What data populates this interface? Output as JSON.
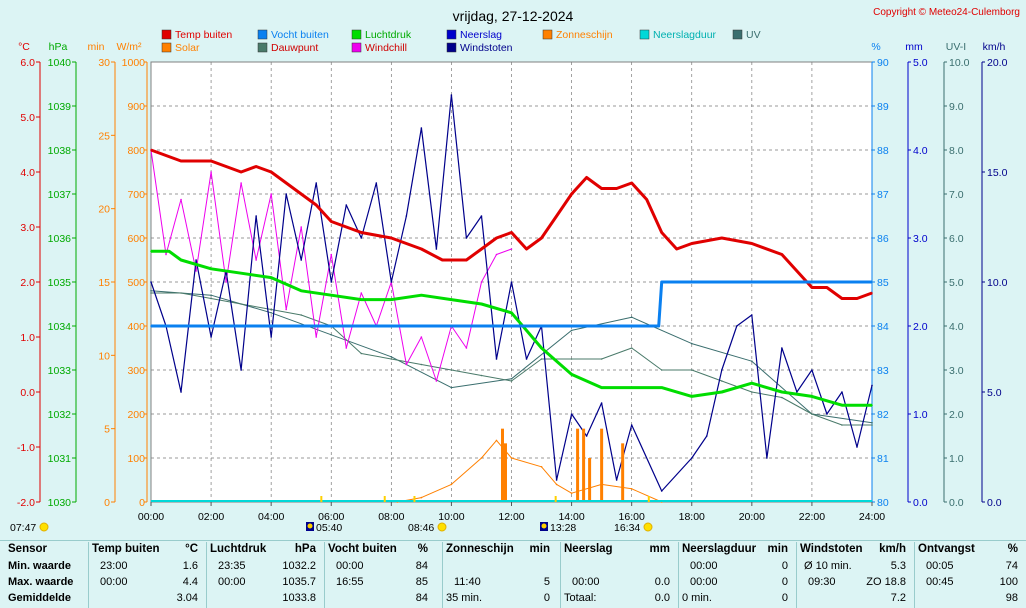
{
  "title": "vrijdag, 27-12-2024",
  "copyright": "Copyright © Meteo24-Culemborg",
  "colors": {
    "temp": "#e00000",
    "humidity": "#0a80f0",
    "pressure": "#00dd00",
    "rain": "#0000cc",
    "sun": "#ff8000",
    "rain_duration": "#00d8d8",
    "uv": "#3a6e6e",
    "solar": "#ff8000",
    "dewpoint": "#4a7a6a",
    "windchill": "#ee00ee",
    "gusts": "#00008b"
  },
  "legend": [
    {
      "label": "Temp buiten",
      "color": "#e00000",
      "text_color": "#e00000"
    },
    {
      "label": "Vocht buiten",
      "color": "#0a80f0",
      "text_color": "#0a80f0"
    },
    {
      "label": "Luchtdruk",
      "color": "#00dd00",
      "text_color": "#00aa00"
    },
    {
      "label": "Neerslag",
      "color": "#0000cc",
      "text_color": "#0000cc"
    },
    {
      "label": "Zonneschijn",
      "color": "#ff8000",
      "text_color": "#ff8000"
    },
    {
      "label": "Neerslagduur",
      "color": "#00d8d8",
      "text_color": "#00b0b0"
    },
    {
      "label": "UV",
      "color": "#3a6e6e",
      "text_color": "#3a6e6e"
    },
    {
      "label": "Solar",
      "color": "#ff8000",
      "text_color": "#ff8000"
    },
    {
      "label": "Dauwpunt",
      "color": "#4a7a6a",
      "text_color": "#d00000"
    },
    {
      "label": "Windchill",
      "color": "#ee00ee",
      "text_color": "#d00000"
    },
    {
      "label": "Windstoten",
      "color": "#00008b",
      "text_color": "#00008b"
    }
  ],
  "axis_units": {
    "temp": "°C",
    "pressure": "hPa",
    "minutes": "min",
    "solar": "W/m²",
    "humidity": "%",
    "rain": "mm",
    "uv": "UV-I",
    "wind": "km/h"
  },
  "chart_data": {
    "type": "line",
    "x_ticks": [
      "00:00",
      "02:00",
      "04:00",
      "06:00",
      "08:00",
      "10:00",
      "12:00",
      "14:00",
      "16:00",
      "18:00",
      "20:00",
      "22:00",
      "24:00"
    ],
    "grid": true,
    "axes": {
      "temp": {
        "range": [
          -2.0,
          6.0
        ],
        "ticks": [
          "6.0",
          "5.0",
          "4.0",
          "3.0",
          "2.0",
          "1.0",
          "0.0",
          "-1.0",
          "-2.0"
        ]
      },
      "pressure": {
        "range": [
          1030,
          1040
        ],
        "ticks": [
          "1040",
          "1039",
          "1038",
          "1037",
          "1036",
          "1035",
          "1034",
          "1033",
          "1032",
          "1031",
          "1030"
        ]
      },
      "minutes": {
        "range": [
          0,
          30
        ],
        "ticks": [
          "30",
          "25",
          "20",
          "15",
          "10",
          "5",
          "0"
        ]
      },
      "solar": {
        "range": [
          0,
          1000
        ],
        "ticks": [
          "1000",
          "900",
          "800",
          "700",
          "600",
          "500",
          "400",
          "300",
          "200",
          "100",
          "0"
        ]
      },
      "humidity": {
        "range": [
          80,
          90
        ],
        "ticks": [
          "90",
          "89",
          "88",
          "87",
          "86",
          "85",
          "84",
          "83",
          "82",
          "81",
          "80"
        ]
      },
      "rain": {
        "range": [
          0,
          5
        ],
        "ticks": [
          "5.0",
          "4.0",
          "3.0",
          "2.0",
          "1.0",
          "0.0"
        ]
      },
      "uv": {
        "range": [
          0,
          10
        ],
        "ticks": [
          "10.0",
          "9.0",
          "8.0",
          "7.0",
          "6.0",
          "5.0",
          "4.0",
          "3.0",
          "2.0",
          "1.0",
          "0.0"
        ]
      },
      "wind": {
        "range": [
          0,
          20
        ],
        "ticks": [
          "20.0",
          "15.0",
          "10.0",
          "5.0",
          "0.0"
        ]
      }
    },
    "series": [
      {
        "name": "Temp buiten",
        "axis": "temp",
        "hours": [
          0,
          0.5,
          1,
          2,
          3,
          3.5,
          4,
          4.5,
          5,
          5.5,
          6,
          7,
          8,
          9,
          9.7,
          10.5,
          11,
          11.5,
          12,
          12.5,
          13,
          13.5,
          14,
          14.5,
          15,
          15.5,
          16,
          16.5,
          17,
          17.5,
          18,
          19,
          20,
          21,
          21.5,
          22,
          22.5,
          23,
          23.5,
          24
        ],
        "values": [
          4.4,
          4.3,
          4.2,
          4.2,
          4.0,
          4.1,
          4.0,
          3.8,
          3.6,
          3.4,
          3.1,
          2.9,
          2.8,
          2.6,
          2.4,
          2.4,
          2.6,
          2.8,
          2.9,
          2.6,
          2.8,
          3.2,
          3.6,
          3.9,
          3.7,
          3.7,
          3.8,
          3.5,
          2.9,
          2.6,
          2.7,
          2.8,
          2.7,
          2.5,
          2.2,
          1.9,
          1.9,
          1.7,
          1.7,
          1.8
        ]
      },
      {
        "name": "Vocht buiten",
        "axis": "humidity",
        "hours": [
          0,
          6,
          12,
          16.9,
          17,
          24
        ],
        "values": [
          84,
          84,
          84,
          84,
          85,
          85
        ]
      },
      {
        "name": "Luchtdruk",
        "axis": "pressure",
        "hours": [
          0,
          0.6,
          1,
          2,
          3,
          4,
          5,
          6,
          7,
          8,
          9,
          10,
          11,
          12,
          13,
          14,
          15,
          16,
          17,
          18,
          19,
          20,
          21,
          22,
          23,
          24
        ],
        "values": [
          1035.7,
          1035.7,
          1035.5,
          1035.3,
          1035.2,
          1035.1,
          1034.8,
          1034.7,
          1034.6,
          1034.6,
          1034.7,
          1034.6,
          1034.5,
          1034.3,
          1033.5,
          1032.9,
          1032.6,
          1032.6,
          1032.6,
          1032.4,
          1032.5,
          1032.7,
          1032.5,
          1032.4,
          1032.2,
          1032.2
        ]
      },
      {
        "name": "Dauwpunt",
        "axis": "temp",
        "hours": [
          0,
          1,
          2,
          3,
          4,
          5,
          6,
          7,
          8,
          9,
          10,
          11,
          12,
          13,
          14,
          15,
          16,
          17,
          18,
          19,
          20,
          21,
          22,
          23,
          24
        ],
        "values": [
          1.8,
          1.8,
          1.7,
          1.6,
          1.5,
          1.4,
          1.2,
          0.7,
          0.6,
          0.5,
          0.4,
          0.3,
          0.2,
          0.6,
          0.6,
          0.6,
          0.8,
          0.4,
          0.4,
          0.2,
          0.0,
          -0.1,
          -0.4,
          -0.6,
          -0.6
        ]
      },
      {
        "name": "Windchill",
        "axis": "temp",
        "hours": [
          0,
          0.5,
          1,
          1.5,
          2,
          2.5,
          3,
          3.5,
          4,
          4.5,
          5,
          5.5,
          6,
          6.5,
          7,
          7.5,
          8,
          8.5,
          9,
          9.5,
          10,
          10.5,
          11,
          11.5,
          12
        ],
        "values": [
          4.4,
          2.5,
          3.5,
          2.2,
          4.0,
          2.0,
          3.8,
          2.4,
          3.6,
          1.5,
          3.0,
          1.0,
          2.5,
          0.8,
          1.8,
          1.2,
          2.0,
          0.5,
          1.0,
          0.2,
          1.2,
          0.8,
          2.0,
          2.5,
          2.6
        ]
      },
      {
        "name": "Solar",
        "axis": "solar",
        "hours": [
          8.2,
          9,
          10,
          11,
          11.5,
          12,
          13,
          13.5,
          14,
          15,
          16,
          17
        ],
        "values": [
          0,
          10,
          40,
          100,
          140,
          100,
          80,
          40,
          20,
          40,
          30,
          0
        ]
      },
      {
        "name": "Zonneschijn",
        "axis": "minutes",
        "hours": [
          11.7,
          11.8,
          14.2,
          14.4,
          14.6,
          15.0,
          15.7
        ],
        "values": [
          5,
          4,
          5,
          5,
          3,
          5,
          4
        ]
      },
      {
        "name": "Windstoten",
        "axis": "wind",
        "hours": [
          0,
          0.5,
          1,
          1.5,
          2,
          2.5,
          3,
          3.5,
          4,
          4.5,
          5,
          5.5,
          6,
          6.5,
          7,
          7.5,
          8,
          8.5,
          9,
          9.5,
          10,
          10.5,
          11,
          11.5,
          12,
          12.5,
          13,
          13.5,
          14,
          14.5,
          15,
          15.5,
          16,
          17,
          18,
          18.5,
          19,
          19.5,
          20,
          20.5,
          21,
          21.5,
          22,
          22.5,
          23,
          23.5,
          24
        ],
        "values": [
          10.0,
          8.0,
          5.0,
          11.0,
          7.5,
          10.5,
          6.0,
          13.0,
          7.5,
          14.0,
          11.0,
          14.5,
          10.0,
          13.5,
          12.0,
          14.5,
          10.0,
          13.0,
          17.0,
          11.5,
          18.5,
          12.0,
          13.0,
          6.5,
          10.0,
          6.5,
          8.0,
          1.0,
          4.0,
          3.0,
          4.5,
          1.0,
          3.5,
          0.5,
          2.0,
          3.0,
          6.0,
          8.0,
          8.5,
          2.0,
          7.0,
          5.0,
          6.0,
          4.0,
          5.0,
          2.5,
          5.3
        ]
      },
      {
        "name": "UV",
        "axis": "uv",
        "hours": [
          0,
          2,
          4,
          6,
          8,
          10,
          12,
          14,
          16,
          18,
          20,
          22,
          24
        ],
        "values": [
          4.8,
          4.7,
          4.3,
          3.8,
          3.3,
          2.6,
          2.8,
          3.9,
          4.2,
          3.6,
          3.2,
          2.0,
          1.8
        ]
      }
    ],
    "sun_events": [
      {
        "time": "07:47",
        "hour": 7.78
      },
      {
        "time": "05:40",
        "hour": 5.67
      },
      {
        "time": "08:46",
        "hour": 8.77
      },
      {
        "time": "13:28",
        "hour": 13.47
      },
      {
        "time": "16:34",
        "hour": 16.57
      }
    ]
  },
  "table": {
    "row_labels": {
      "header": "Sensor",
      "min": "Min. waarde",
      "max": "Max. waarde",
      "avg": "Gemiddelde"
    },
    "columns": [
      {
        "title": "Temp buiten",
        "unit": "°C",
        "min_time": "23:00",
        "min_val": "1.6",
        "max_time": "00:00",
        "max_val": "4.4",
        "avg_label": "",
        "avg_val": "3.04"
      },
      {
        "title": "Luchtdruk",
        "unit": "hPa",
        "min_time": "23:35",
        "min_val": "1032.2",
        "max_time": "00:00",
        "max_val": "1035.7",
        "avg_label": "",
        "avg_val": "1033.8"
      },
      {
        "title": "Vocht buiten",
        "unit": "%",
        "min_time": "00:00",
        "min_val": "84",
        "max_time": "16:55",
        "max_val": "85",
        "avg_label": "",
        "avg_val": "84"
      },
      {
        "title": "Zonneschijn",
        "unit": "min",
        "min_time": "",
        "min_val": "",
        "max_time": "11:40",
        "max_val": "5",
        "avg_label": "35 min.",
        "avg_val": "0"
      },
      {
        "title": "Neerslag",
        "unit": "mm",
        "min_time": "",
        "min_val": "",
        "max_time": "00:00",
        "max_val": "0.0",
        "avg_label": "Totaal:",
        "avg_val": "0.0"
      },
      {
        "title": "Neerslagduur",
        "unit": "min",
        "min_time": "00:00",
        "min_val": "0",
        "max_time": "00:00",
        "max_val": "0",
        "avg_label": "0 min.",
        "avg_val": "0"
      },
      {
        "title": "Windstoten",
        "unit": "km/h",
        "min_time": "Ø 10 min.",
        "min_val": "5.3",
        "max_time": "09:30",
        "max_val": "ZO 18.8",
        "avg_label": "",
        "avg_val": "7.2"
      },
      {
        "title": "Ontvangst",
        "unit": "%",
        "min_time": "00:05",
        "min_val": "74",
        "max_time": "00:45",
        "max_val": "100",
        "avg_label": "",
        "avg_val": "98"
      }
    ]
  }
}
